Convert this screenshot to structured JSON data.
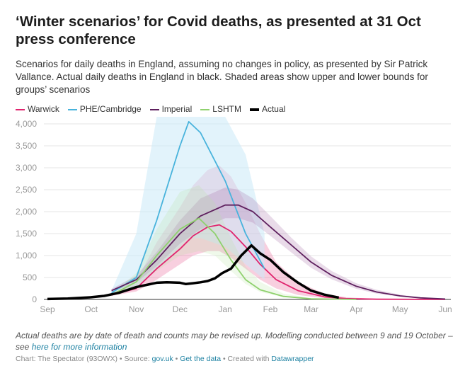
{
  "title": "‘Winter scenarios’ for Covid deaths, as presented at 31 Oct press conference",
  "subtitle": "Scenarios for daily deaths in England, assuming no changes in policy, as presented by Sir Patrick Vallance. Actual daily deaths in England in black. Shaded areas show upper and lower bounds for groups’ scenarios",
  "note": "Actual deaths are by date of death and counts may be revised up. Modelling conducted between 9 and 19 October – see ",
  "note_link": "here for more information",
  "credit": {
    "chart": "Chart: The Spectator (93OWX) • Source: ",
    "source": "gov.uk",
    "sep": " • ",
    "data": "Get the data",
    "created": " • Created with ",
    "tool": "Datawrapper"
  },
  "chart_data": {
    "type": "line",
    "title": "‘Winter scenarios’ for Covid deaths, as presented at 31 Oct press conference",
    "xlabel": "",
    "ylabel": "",
    "xlim": [
      "2020-09-01",
      "2021-06-01"
    ],
    "ylim": [
      0,
      4000
    ],
    "yticks": [
      0,
      500,
      1000,
      1500,
      2000,
      2500,
      3000,
      3500,
      4000
    ],
    "ytick_labels": [
      "0",
      "500",
      "1,000",
      "1,500",
      "2,000",
      "2,500",
      "3,000",
      "3,500",
      "4,000"
    ],
    "xticks": [
      "2020-09-01",
      "2020-10-01",
      "2020-11-01",
      "2020-12-01",
      "2021-01-01",
      "2021-02-01",
      "2021-03-01",
      "2021-04-01",
      "2021-05-01",
      "2021-06-01"
    ],
    "xtick_labels": [
      "Sep",
      "Oct",
      "Nov",
      "Dec",
      "Jan",
      "Feb",
      "Mar",
      "Apr",
      "May",
      "Jun"
    ],
    "grid": true,
    "legend_position": "top-left",
    "series": [
      {
        "name": "Warwick",
        "color": "#e0246e",
        "band_color": "#e0246e",
        "points": [
          [
            "2020-10-15",
            100,
            80,
            130
          ],
          [
            "2020-11-01",
            250,
            180,
            420
          ],
          [
            "2020-11-15",
            700,
            450,
            1300
          ],
          [
            "2020-12-01",
            1150,
            800,
            2100
          ],
          [
            "2020-12-10",
            1450,
            1000,
            2600
          ],
          [
            "2020-12-20",
            1650,
            1100,
            2950
          ],
          [
            "2020-12-28",
            1700,
            1100,
            3050
          ],
          [
            "2021-01-05",
            1550,
            950,
            2800
          ],
          [
            "2021-01-15",
            1200,
            700,
            2200
          ],
          [
            "2021-01-25",
            800,
            450,
            1500
          ],
          [
            "2021-02-05",
            450,
            250,
            850
          ],
          [
            "2021-02-20",
            200,
            100,
            400
          ],
          [
            "2021-03-10",
            60,
            30,
            130
          ],
          [
            "2021-03-25",
            20,
            10,
            50
          ],
          [
            "2021-04-15",
            5,
            2,
            12
          ],
          [
            "2021-06-01",
            0,
            0,
            0
          ]
        ]
      },
      {
        "name": "PHE/Cambridge",
        "color": "#48b3dc",
        "band_color": "#cbe9f7",
        "points": [
          [
            "2020-10-15",
            150,
            100,
            200
          ],
          [
            "2020-11-01",
            500,
            250,
            1500
          ],
          [
            "2020-11-15",
            1800,
            700,
            4500
          ],
          [
            "2020-12-01",
            3500,
            1200,
            5000
          ],
          [
            "2020-12-07",
            4050,
            1400,
            5000
          ],
          [
            "2020-12-15",
            3800,
            1400,
            5000
          ],
          [
            "2021-01-01",
            2700,
            1200,
            5000
          ],
          [
            "2021-01-15",
            1500,
            800,
            3300
          ],
          [
            "2021-01-28",
            700,
            450,
            1500
          ]
        ]
      },
      {
        "name": "Imperial",
        "color": "#5e1f5e",
        "band_color": "#9a5a9a",
        "points": [
          [
            "2020-10-15",
            200,
            170,
            240
          ],
          [
            "2020-11-01",
            450,
            380,
            540
          ],
          [
            "2020-11-15",
            900,
            760,
            1080
          ],
          [
            "2020-12-01",
            1500,
            1270,
            1800
          ],
          [
            "2020-12-15",
            1900,
            1600,
            2300
          ],
          [
            "2021-01-01",
            2150,
            1850,
            2550
          ],
          [
            "2021-01-10",
            2150,
            1850,
            2500
          ],
          [
            "2021-01-20",
            2000,
            1750,
            2300
          ],
          [
            "2021-02-01",
            1650,
            1450,
            1900
          ],
          [
            "2021-02-15",
            1250,
            1080,
            1420
          ],
          [
            "2021-03-01",
            850,
            720,
            980
          ],
          [
            "2021-03-15",
            550,
            460,
            650
          ],
          [
            "2021-04-01",
            300,
            240,
            370
          ],
          [
            "2021-04-15",
            170,
            130,
            220
          ],
          [
            "2021-05-01",
            80,
            60,
            110
          ],
          [
            "2021-05-15",
            35,
            25,
            50
          ],
          [
            "2021-06-01",
            10,
            5,
            15
          ]
        ]
      },
      {
        "name": "LSHTM",
        "color": "#8fd16e",
        "band_color": "#b8e3a0",
        "points": [
          [
            "2020-10-15",
            100,
            80,
            130
          ],
          [
            "2020-11-01",
            400,
            300,
            600
          ],
          [
            "2020-11-15",
            1000,
            650,
            1600
          ],
          [
            "2020-12-01",
            1600,
            1000,
            2450
          ],
          [
            "2020-12-14",
            1850,
            1100,
            2600
          ],
          [
            "2020-12-25",
            1500,
            1000,
            2200
          ],
          [
            "2021-01-05",
            900,
            650,
            1400
          ],
          [
            "2021-01-15",
            450,
            350,
            750
          ],
          [
            "2021-01-25",
            220,
            170,
            400
          ],
          [
            "2021-02-10",
            70,
            50,
            130
          ],
          [
            "2021-03-01",
            15,
            10,
            30
          ],
          [
            "2021-04-01",
            0,
            0,
            0
          ]
        ]
      },
      {
        "name": "Actual",
        "color": "#000000",
        "points": [
          [
            "2020-09-01",
            10
          ],
          [
            "2020-09-15",
            20
          ],
          [
            "2020-10-01",
            50
          ],
          [
            "2020-10-10",
            80
          ],
          [
            "2020-10-20",
            150
          ],
          [
            "2020-11-01",
            280
          ],
          [
            "2020-11-08",
            330
          ],
          [
            "2020-11-15",
            380
          ],
          [
            "2020-11-22",
            390
          ],
          [
            "2020-12-01",
            380
          ],
          [
            "2020-12-05",
            350
          ],
          [
            "2020-12-10",
            370
          ],
          [
            "2020-12-15",
            390
          ],
          [
            "2020-12-20",
            420
          ],
          [
            "2020-12-25",
            480
          ],
          [
            "2020-12-30",
            600
          ],
          [
            "2021-01-05",
            700
          ],
          [
            "2021-01-12",
            1000
          ],
          [
            "2021-01-19",
            1230
          ],
          [
            "2021-01-25",
            1050
          ],
          [
            "2021-02-01",
            900
          ],
          [
            "2021-02-10",
            620
          ],
          [
            "2021-02-20",
            380
          ],
          [
            "2021-03-01",
            200
          ],
          [
            "2021-03-10",
            110
          ],
          [
            "2021-03-20",
            40
          ]
        ]
      }
    ]
  }
}
